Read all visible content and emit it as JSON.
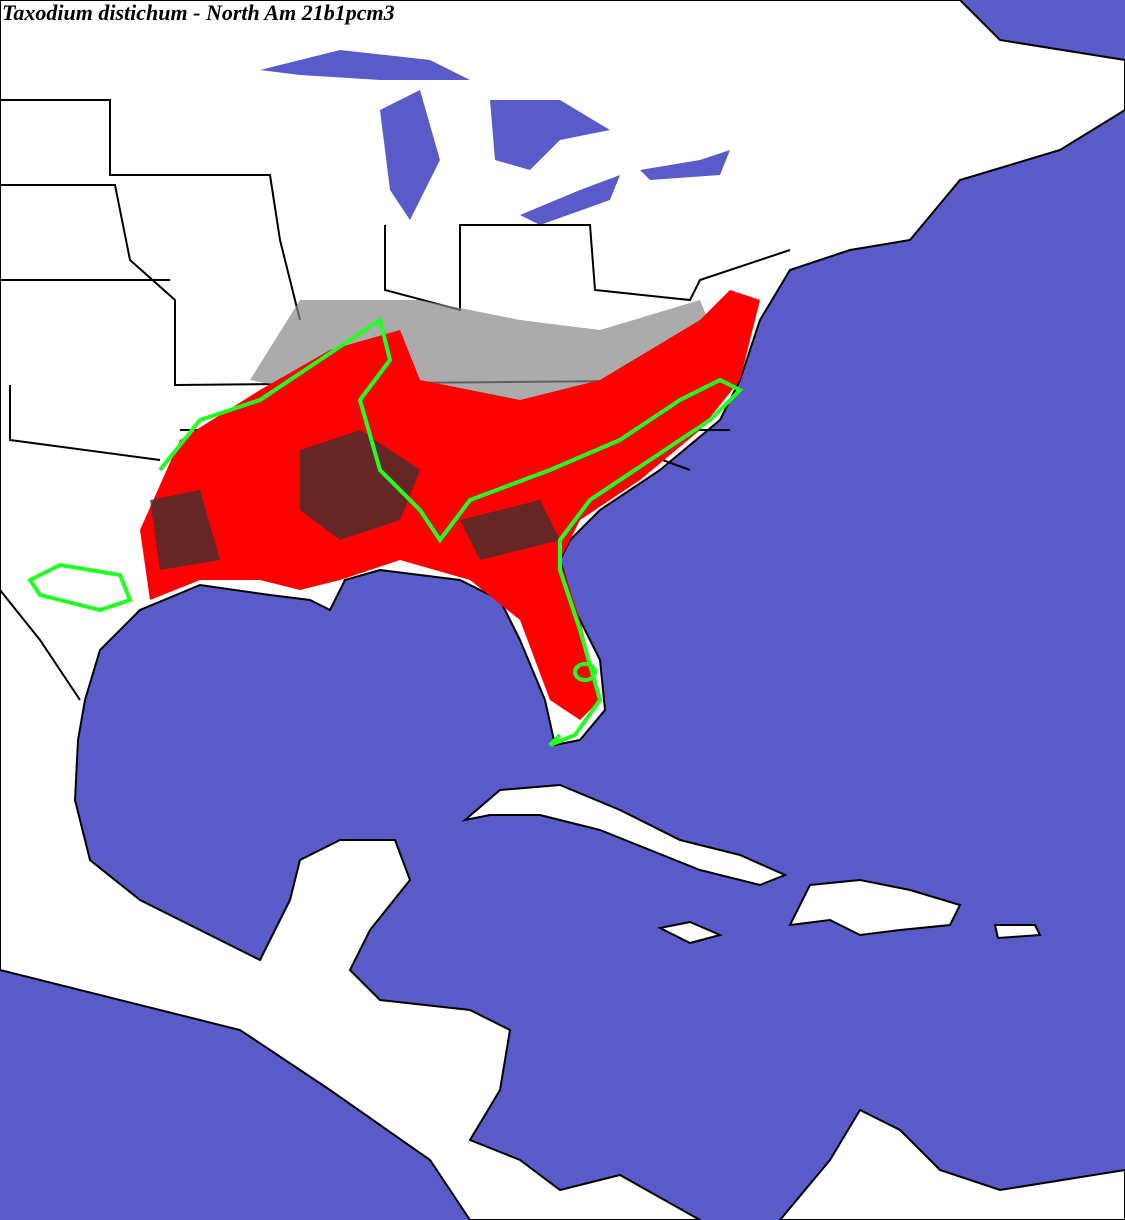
{
  "title": "Taxodium distichum - North Am 21b1pcm3"
}
